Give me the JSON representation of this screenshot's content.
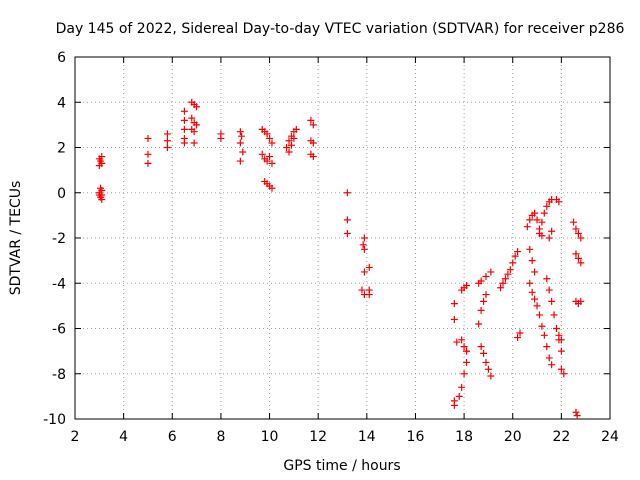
{
  "chart_data": {
    "type": "scatter",
    "title": "Day 145 of 2022, Sidereal Day-to-day VTEC variation (SDTVAR) for receiver p286",
    "xlabel": "GPS time / hours",
    "ylabel": "SDTVAR / TECUs",
    "xlim": [
      2,
      24
    ],
    "ylim": [
      -10,
      6
    ],
    "xticks": [
      2,
      4,
      6,
      8,
      10,
      12,
      14,
      16,
      18,
      20,
      22,
      24
    ],
    "yticks": [
      -10,
      -8,
      -6,
      -4,
      -2,
      0,
      2,
      4,
      6
    ],
    "grid": true,
    "marker": "+",
    "color": "#ff0000",
    "series": [
      {
        "name": "SDTVAR",
        "points": [
          [
            3.0,
            1.5
          ],
          [
            3.05,
            1.4
          ],
          [
            3.1,
            1.3
          ],
          [
            3.0,
            1.2
          ],
          [
            3.1,
            1.6
          ],
          [
            3.05,
            0.2
          ],
          [
            3.1,
            0.1
          ],
          [
            3.0,
            -0.1
          ],
          [
            3.1,
            -0.3
          ],
          [
            3.0,
            0.0
          ],
          [
            3.05,
            -0.2
          ],
          [
            3.1,
            -0.1
          ],
          [
            5.0,
            2.4
          ],
          [
            5.0,
            1.7
          ],
          [
            5.0,
            1.3
          ],
          [
            5.8,
            2.6
          ],
          [
            5.8,
            2.3
          ],
          [
            5.8,
            2.0
          ],
          [
            6.5,
            3.6
          ],
          [
            6.5,
            3.2
          ],
          [
            6.5,
            2.8
          ],
          [
            6.5,
            2.4
          ],
          [
            6.5,
            2.2
          ],
          [
            6.8,
            4.0
          ],
          [
            6.9,
            3.9
          ],
          [
            7.0,
            3.8
          ],
          [
            6.8,
            3.3
          ],
          [
            6.9,
            3.1
          ],
          [
            7.0,
            3.0
          ],
          [
            6.8,
            2.8
          ],
          [
            6.9,
            2.7
          ],
          [
            6.9,
            2.2
          ],
          [
            8.0,
            2.6
          ],
          [
            8.0,
            2.4
          ],
          [
            8.8,
            2.7
          ],
          [
            8.85,
            2.5
          ],
          [
            8.8,
            2.2
          ],
          [
            8.9,
            1.8
          ],
          [
            8.8,
            1.4
          ],
          [
            9.7,
            2.8
          ],
          [
            9.8,
            2.7
          ],
          [
            9.9,
            2.6
          ],
          [
            10.0,
            2.4
          ],
          [
            10.1,
            2.2
          ],
          [
            9.7,
            1.7
          ],
          [
            9.8,
            1.5
          ],
          [
            9.9,
            1.4
          ],
          [
            10.0,
            1.6
          ],
          [
            10.1,
            1.3
          ],
          [
            9.8,
            0.5
          ],
          [
            9.9,
            0.4
          ],
          [
            10.0,
            0.3
          ],
          [
            10.1,
            0.2
          ],
          [
            10.7,
            2.0
          ],
          [
            10.8,
            2.3
          ],
          [
            10.9,
            2.5
          ],
          [
            11.0,
            2.7
          ],
          [
            11.1,
            2.8
          ],
          [
            10.8,
            1.8
          ],
          [
            10.9,
            2.1
          ],
          [
            11.0,
            2.4
          ],
          [
            11.7,
            3.2
          ],
          [
            11.8,
            3.0
          ],
          [
            11.7,
            2.3
          ],
          [
            11.8,
            2.2
          ],
          [
            11.7,
            1.7
          ],
          [
            11.8,
            1.6
          ],
          [
            13.2,
            0.0
          ],
          [
            13.2,
            -1.2
          ],
          [
            13.2,
            -1.8
          ],
          [
            13.9,
            -2.0
          ],
          [
            13.85,
            -2.3
          ],
          [
            13.9,
            -2.5
          ],
          [
            13.9,
            -3.5
          ],
          [
            14.1,
            -3.3
          ],
          [
            13.8,
            -4.3
          ],
          [
            13.9,
            -4.5
          ],
          [
            14.1,
            -4.3
          ],
          [
            14.1,
            -4.5
          ],
          [
            17.6,
            -4.9
          ],
          [
            17.6,
            -5.6
          ],
          [
            17.7,
            -6.6
          ],
          [
            17.6,
            -9.2
          ],
          [
            17.6,
            -9.4
          ],
          [
            17.8,
            -9.0
          ],
          [
            17.9,
            -8.6
          ],
          [
            18.0,
            -8.0
          ],
          [
            18.1,
            -7.5
          ],
          [
            18.1,
            -7.0
          ],
          [
            17.9,
            -4.3
          ],
          [
            18.0,
            -4.2
          ],
          [
            18.1,
            -4.1
          ],
          [
            17.9,
            -6.5
          ],
          [
            18.0,
            -6.8
          ],
          [
            18.1,
            -7.0
          ],
          [
            18.6,
            -5.8
          ],
          [
            18.7,
            -5.2
          ],
          [
            18.8,
            -4.8
          ],
          [
            18.9,
            -4.5
          ],
          [
            18.6,
            -4.0
          ],
          [
            18.7,
            -3.9
          ],
          [
            18.9,
            -3.7
          ],
          [
            19.1,
            -3.5
          ],
          [
            18.7,
            -6.8
          ],
          [
            18.8,
            -7.1
          ],
          [
            18.9,
            -7.5
          ],
          [
            19.0,
            -7.8
          ],
          [
            19.1,
            -8.1
          ],
          [
            19.5,
            -4.2
          ],
          [
            19.6,
            -4.0
          ],
          [
            19.7,
            -3.8
          ],
          [
            19.8,
            -3.6
          ],
          [
            19.9,
            -3.4
          ],
          [
            20.0,
            -3.1
          ],
          [
            20.1,
            -2.8
          ],
          [
            20.2,
            -2.6
          ],
          [
            20.2,
            -6.4
          ],
          [
            20.3,
            -6.2
          ],
          [
            20.6,
            -1.5
          ],
          [
            20.7,
            -1.2
          ],
          [
            20.8,
            -1.0
          ],
          [
            20.9,
            -0.9
          ],
          [
            21.0,
            -1.2
          ],
          [
            21.1,
            -1.6
          ],
          [
            21.2,
            -1.9
          ],
          [
            20.7,
            -2.5
          ],
          [
            20.8,
            -3.0
          ],
          [
            20.9,
            -3.5
          ],
          [
            20.7,
            -4.0
          ],
          [
            20.8,
            -4.4
          ],
          [
            20.9,
            -4.7
          ],
          [
            21.0,
            -5.0
          ],
          [
            21.1,
            -5.4
          ],
          [
            21.2,
            -5.9
          ],
          [
            21.3,
            -6.3
          ],
          [
            21.4,
            -6.8
          ],
          [
            21.5,
            -7.3
          ],
          [
            21.6,
            -7.6
          ],
          [
            21.1,
            -1.8
          ],
          [
            21.2,
            -1.3
          ],
          [
            21.3,
            -0.9
          ],
          [
            21.4,
            -0.6
          ],
          [
            21.5,
            -0.4
          ],
          [
            21.6,
            -0.3
          ],
          [
            21.8,
            -0.3
          ],
          [
            21.9,
            -0.4
          ],
          [
            21.5,
            -2.0
          ],
          [
            21.6,
            -1.7
          ],
          [
            21.4,
            -3.8
          ],
          [
            21.5,
            -4.3
          ],
          [
            21.6,
            -4.8
          ],
          [
            21.7,
            -5.4
          ],
          [
            21.8,
            -6.0
          ],
          [
            21.9,
            -6.5
          ],
          [
            22.0,
            -7.0
          ],
          [
            21.9,
            -6.3
          ],
          [
            22.0,
            -6.5
          ],
          [
            22.0,
            -7.8
          ],
          [
            22.1,
            -8.0
          ],
          [
            22.5,
            -1.3
          ],
          [
            22.6,
            -1.6
          ],
          [
            22.7,
            -1.8
          ],
          [
            22.8,
            -2.0
          ],
          [
            22.6,
            -2.7
          ],
          [
            22.7,
            -2.9
          ],
          [
            22.8,
            -3.1
          ],
          [
            22.6,
            -4.8
          ],
          [
            22.7,
            -4.9
          ],
          [
            22.8,
            -4.8
          ],
          [
            22.6,
            -9.7
          ],
          [
            22.65,
            -9.85
          ]
        ]
      }
    ]
  }
}
